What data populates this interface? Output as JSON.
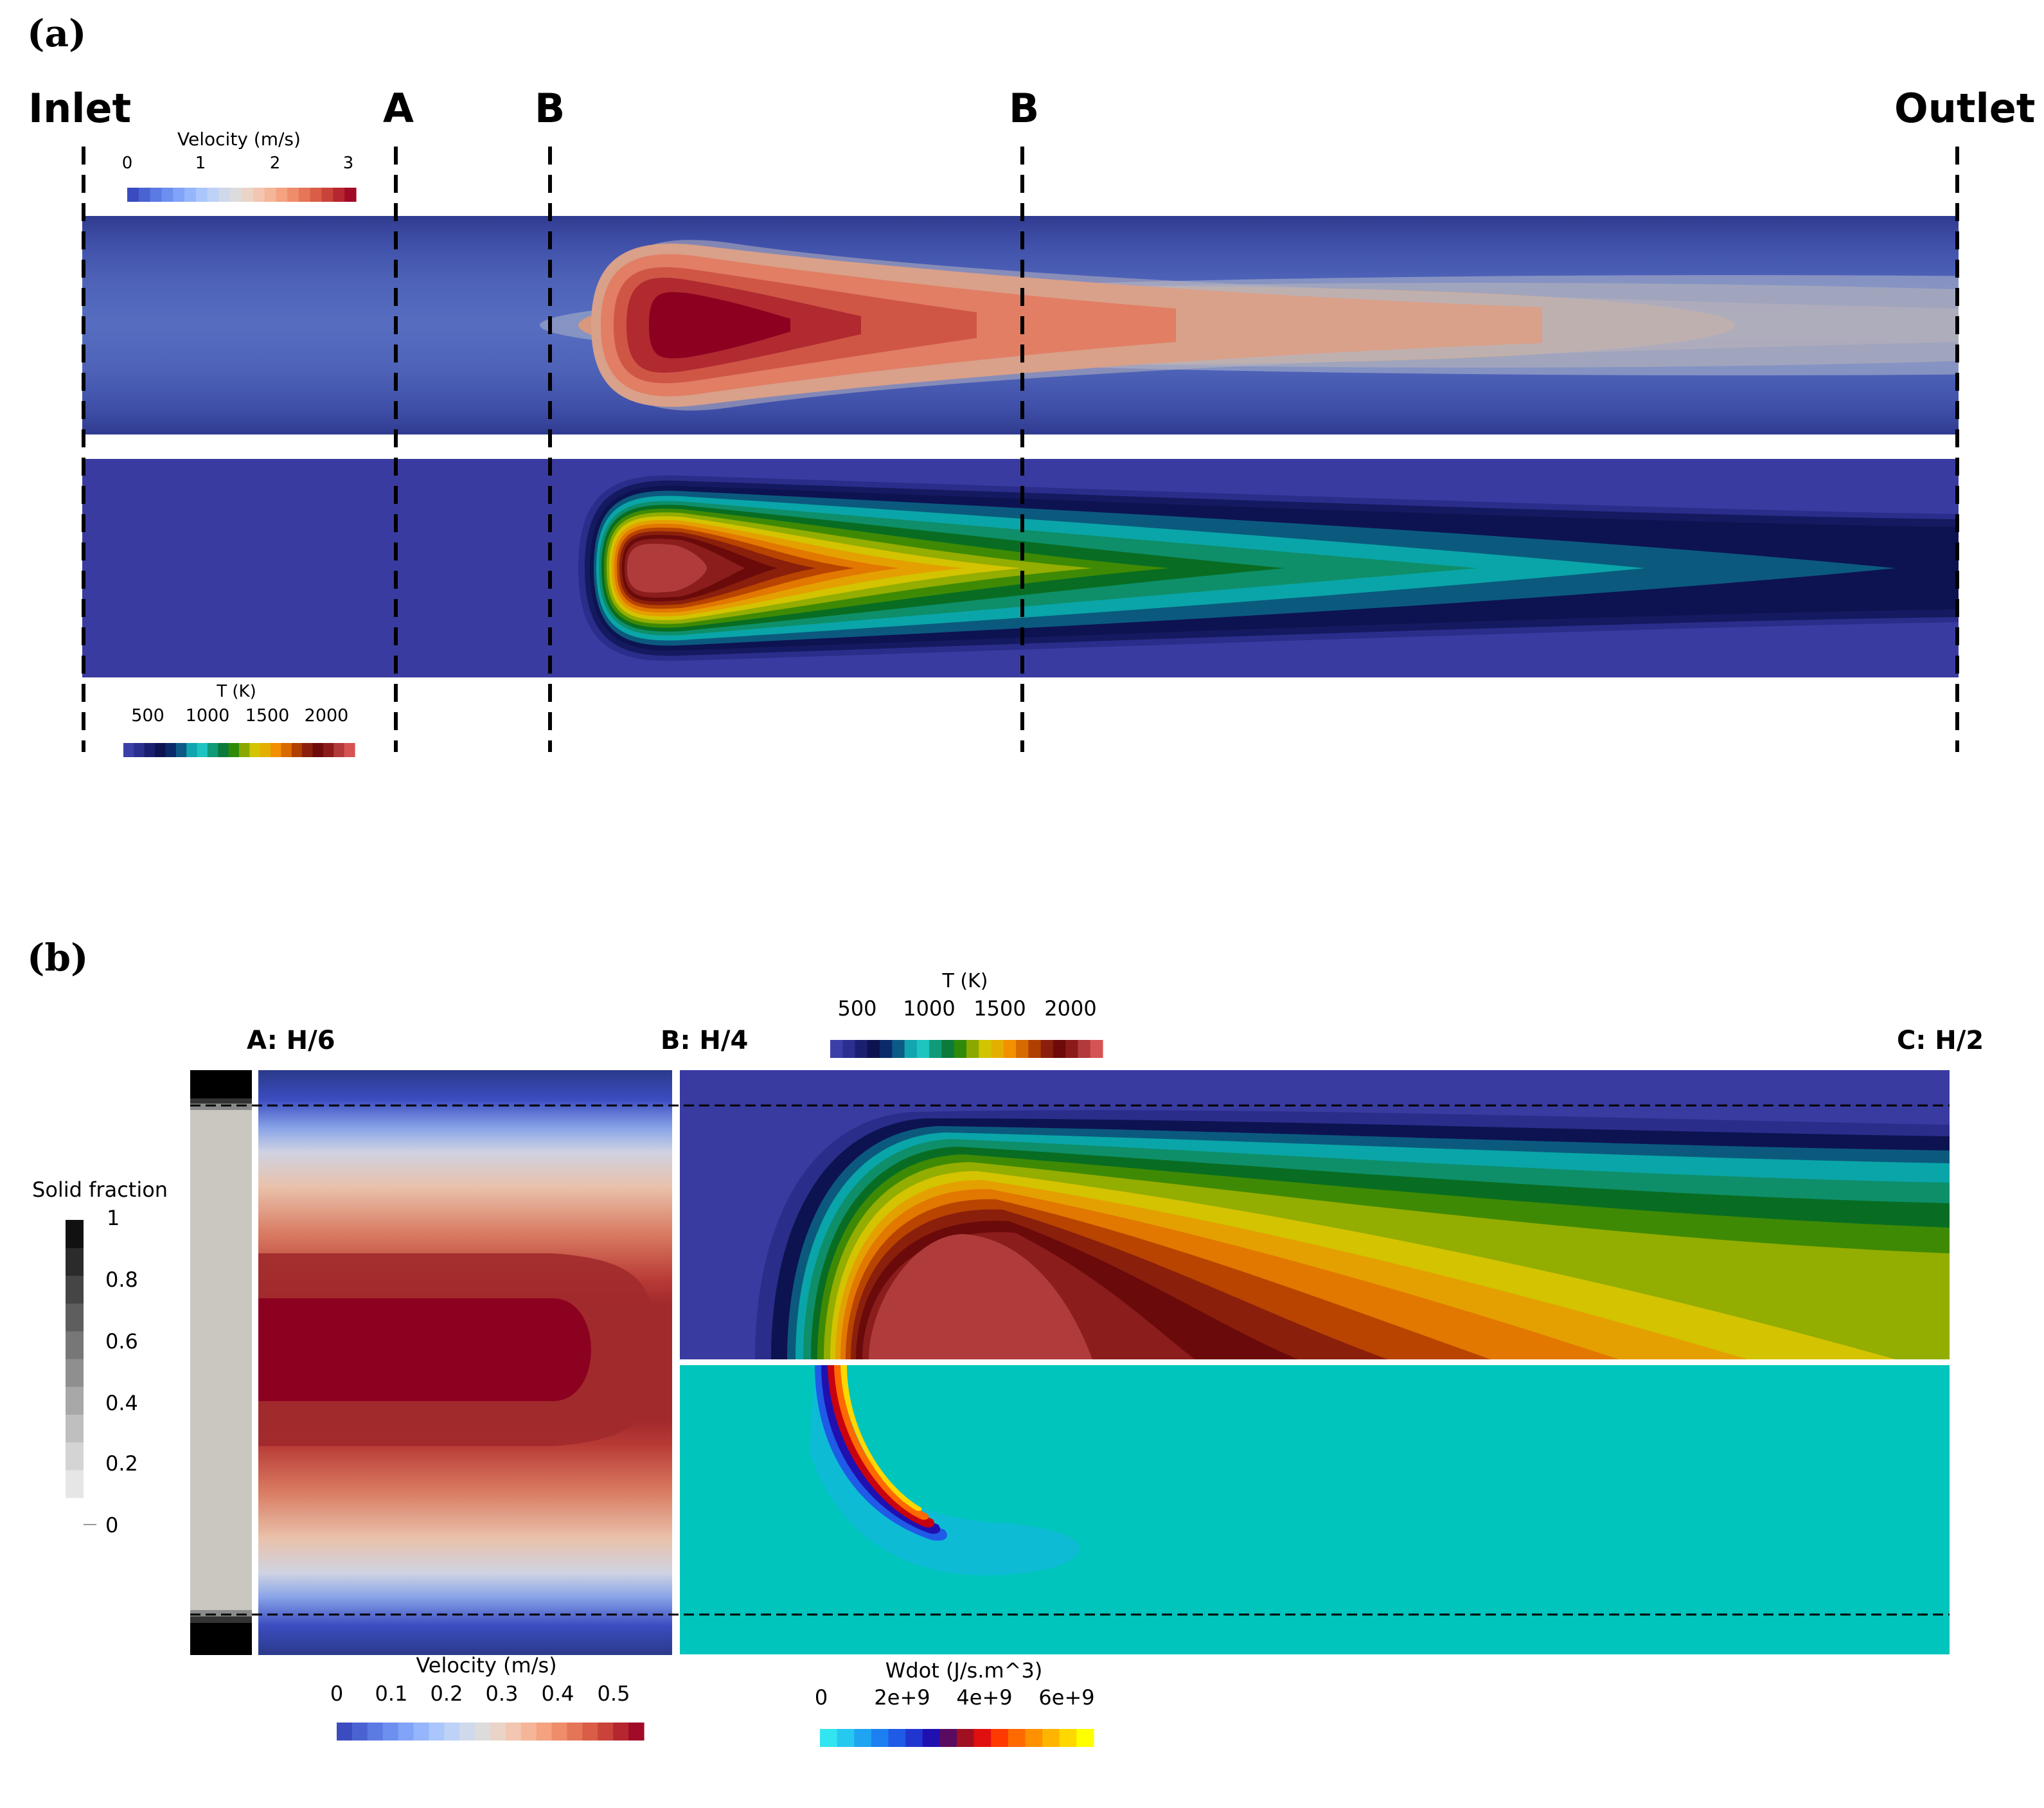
{
  "panel_a": {
    "label": "(a)",
    "stations": [
      "Inlet",
      "A",
      "B",
      "B",
      "Outlet"
    ],
    "velocity_colorbar": {
      "title": "Velocity (m/s)",
      "ticks": [
        "0",
        "1",
        "2",
        "3"
      ]
    },
    "temperature_colorbar": {
      "title": "T (K)",
      "ticks": [
        "500",
        "1000",
        "1500",
        "2000"
      ]
    }
  },
  "panel_b": {
    "label": "(b)",
    "sections": [
      "A: H/6",
      "B: H/4",
      "C: H/2"
    ],
    "solid_fraction_colorbar": {
      "title": "Solid fraction",
      "ticks": [
        "1",
        "0.8",
        "0.6",
        "0.4",
        "0.2",
        "0"
      ]
    },
    "velocity_colorbar": {
      "title": "Velocity (m/s)",
      "ticks": [
        "0",
        "0.1",
        "0.2",
        "0.3",
        "0.4",
        "0.5"
      ]
    },
    "temperature_colorbar": {
      "title": "T (K)",
      "ticks": [
        "500",
        "1000",
        "1500",
        "2000"
      ]
    },
    "wdot_colorbar": {
      "title": "Wdot (J/s.m^3)",
      "ticks": [
        "0",
        "2e+9",
        "4e+9",
        "6e+9"
      ]
    }
  },
  "colors": {
    "vel_cmap": [
      "#3b4cc0",
      "#4a63d3",
      "#5b7ae3",
      "#6d8ff0",
      "#81a3f8",
      "#95b5fd",
      "#aac6fd",
      "#bdd2f6",
      "#cfd9ea",
      "#dddcdc",
      "#ead4c8",
      "#f2c6b0",
      "#f5b598",
      "#f4a280",
      "#ef8c6a",
      "#e57557",
      "#d95d47",
      "#c9433a",
      "#b5262f",
      "#a10b28"
    ],
    "temp_cmap": [
      "#3b3fa8",
      "#2b2f8f",
      "#1a1f70",
      "#0d1350",
      "#0a2a6a",
      "#0c5a86",
      "#11a5b0",
      "#1fc3c0",
      "#109a78",
      "#0b7a3a",
      "#2f8a0a",
      "#8aa800",
      "#d2c400",
      "#e4b000",
      "#f29000",
      "#d86a00",
      "#b04000",
      "#8a1f0c",
      "#6e0a0a",
      "#8b1a1a",
      "#b23a3a",
      "#d65353"
    ],
    "wdot_cmap": [
      "#33e5f0",
      "#26c8f0",
      "#1ea4f0",
      "#1c80f0",
      "#1f5be6",
      "#2136d0",
      "#2010b0",
      "#5a0a60",
      "#a01020",
      "#e01010",
      "#ff3a00",
      "#ff6a00",
      "#ff9000",
      "#ffb400",
      "#ffd800",
      "#ffff00"
    ],
    "solid_cmap": [
      "#e6e6e6",
      "#d4d4d4",
      "#bfbfbf",
      "#a8a8a8",
      "#8f8f8f",
      "#777777",
      "#5e5e5e",
      "#454545",
      "#2b2b2b",
      "#111111"
    ],
    "bg_blue": "#3a3ba0",
    "bg_cyan": "#00c5bd"
  }
}
